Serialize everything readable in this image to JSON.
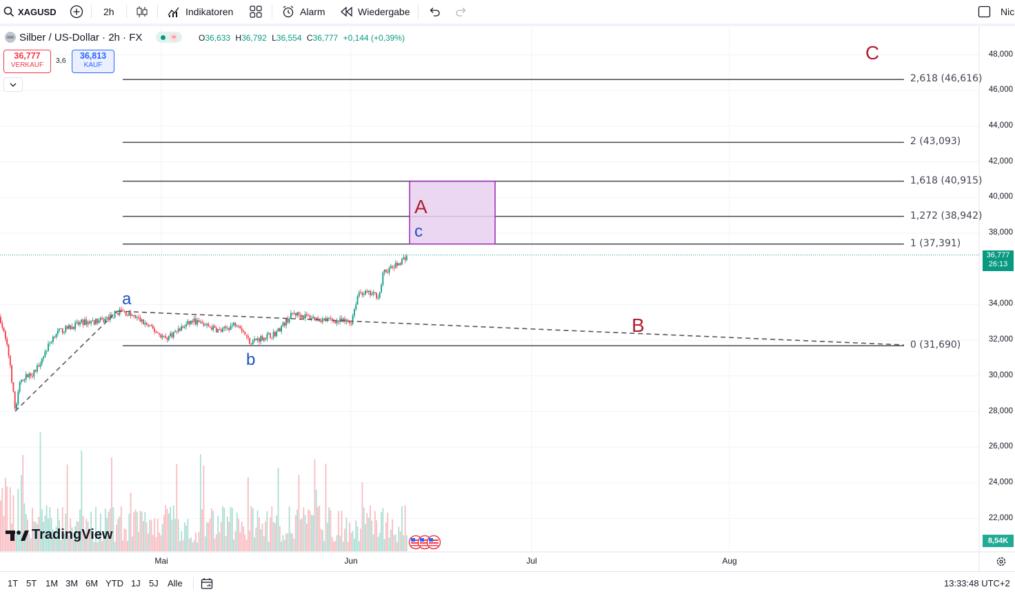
{
  "toolbar": {
    "symbol": "XAGUSD",
    "interval": "2h",
    "indicators_label": "Indikatoren",
    "alarm_label": "Alarm",
    "replay_label": "Wiedergabe",
    "right_label": "Nic"
  },
  "legend": {
    "title": "Silber / US-Dollar · 2h · FX",
    "open_label": "O",
    "open": "36,633",
    "high_label": "H",
    "high": "36,792",
    "low_label": "L",
    "low": "36,554",
    "close_label": "C",
    "close": "36,777",
    "change": "+0,144 (+0,39%)"
  },
  "trade": {
    "sell_price": "36,777",
    "sell_label": "VERKAUF",
    "spread": "3,6",
    "buy_price": "36,813",
    "buy_label": "KAUF"
  },
  "price_axis": {
    "ticks": [
      "48,000",
      "46,000",
      "44,000",
      "42,000",
      "40,000",
      "38,000",
      "34,000",
      "32,000",
      "30,000",
      "28,000",
      "26,000",
      "24,000",
      "22,000"
    ],
    "current_price": "36,777",
    "countdown": "26:13",
    "volume_badge": "8,54K"
  },
  "time_axis": {
    "ticks": [
      "Mai",
      "Jun",
      "Jul",
      "Aug"
    ]
  },
  "fib_levels": [
    {
      "label": "2,618 (46,616)",
      "price": 46.616
    },
    {
      "label": "2 (43,093)",
      "price": 43.093
    },
    {
      "label": "1,618 (40,915)",
      "price": 40.915
    },
    {
      "label": "1,272 (38,942)",
      "price": 38.942
    },
    {
      "label": "1 (37,391)",
      "price": 37.391
    },
    {
      "label": "0 (31,690)",
      "price": 31.69
    }
  ],
  "wave_labels": {
    "a": "a",
    "b": "b",
    "c": "c",
    "A": "A",
    "B": "B",
    "C": "C"
  },
  "watermark": "TradingView",
  "bottom": {
    "ranges": [
      "1T",
      "5T",
      "1M",
      "3M",
      "6M",
      "YTD",
      "1J",
      "5J",
      "Alle"
    ],
    "clock": "13:33:48 UTC+2"
  },
  "colors": {
    "up": "#089981",
    "down": "#f23645",
    "wave_blue": "#1e4fc2",
    "wave_red": "#b01e2f",
    "box_fill": "#e8d0f0",
    "box_border": "#9c27b0"
  }
}
